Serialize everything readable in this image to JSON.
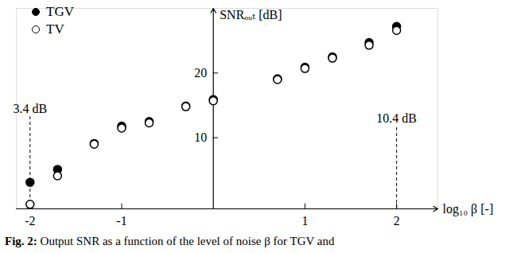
{
  "chart_data": {
    "type": "scatter",
    "caption": "Fig. 2: Output SNR as a function of the level of noise β for TGV and",
    "x_label": "log₁₀ β [-]",
    "y_label": "SNRₒᵤₜ [dB]",
    "x": [
      -2,
      -1.7,
      -1.3,
      -1,
      -0.7,
      -0.3,
      0,
      0.7,
      1,
      1.3,
      1.7,
      2
    ],
    "series": [
      {
        "name": "TGV",
        "color": "#000000",
        "marker": "filled",
        "values": [
          3.1,
          5.1,
          9.1,
          11.8,
          12.5,
          14.9,
          15.9,
          19.1,
          20.9,
          22.5,
          24.7,
          27.2
        ]
      },
      {
        "name": "TV",
        "color": "#000000",
        "marker": "open",
        "values": [
          -0.3,
          4.1,
          9.0,
          11.5,
          12.3,
          14.8,
          15.7,
          19.0,
          20.7,
          22.3,
          24.3,
          26.6
        ]
      }
    ],
    "annotations": [
      {
        "text": "3.4 dB",
        "x": -2
      },
      {
        "text": "10.4 dB",
        "x": 2
      }
    ],
    "xlim": [
      -2.15,
      2.45
    ],
    "ylim": [
      -1,
      30
    ],
    "xticks": [
      -2,
      -1,
      1,
      2
    ],
    "yticks": [
      10,
      20
    ],
    "legend": "top-left",
    "grid": false
  }
}
